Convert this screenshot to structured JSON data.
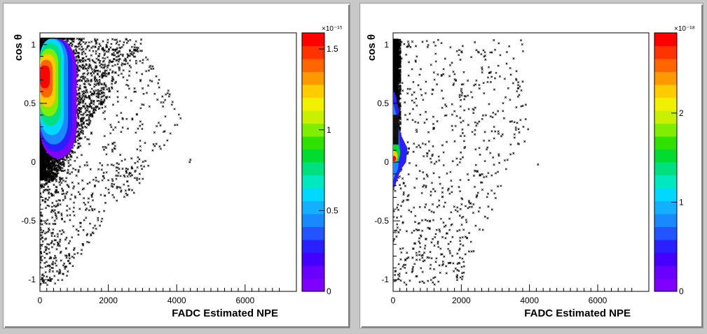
{
  "chart_data": [
    {
      "type": "scatter",
      "title": "",
      "xlabel": "FADC Estimated NPE",
      "ylabel": "cos θ",
      "xlim": [
        0,
        7500
      ],
      "ylim": [
        -1.1,
        1.1
      ],
      "x_ticks": [
        "0",
        "2000",
        "4000",
        "6000"
      ],
      "y_ticks": [
        "-1",
        "-0.5",
        "0",
        "0.5",
        "1"
      ],
      "colorbar": {
        "exponent": "×10⁻¹⁵",
        "range": [
          0,
          1.6
        ],
        "tick_labels": [
          "0",
          "0.5",
          "1",
          "1.5"
        ],
        "tick_values": [
          0,
          0.5,
          1,
          1.5
        ]
      },
      "overlay": "contour",
      "overlay_peak_cos": 0.75,
      "scatter_density": "dense"
    },
    {
      "type": "scatter",
      "title": "",
      "xlabel": "FADC Estimated NPE",
      "ylabel": "cos θ",
      "xlim": [
        0,
        7500
      ],
      "ylim": [
        -1.1,
        1.1
      ],
      "x_ticks": [
        "0",
        "2000",
        "4000",
        "6000"
      ],
      "y_ticks": [
        "-1",
        "-0.5",
        "0",
        "0.5",
        "1"
      ],
      "colorbar": {
        "exponent": "×10⁻¹⁸",
        "range": [
          0,
          2.9
        ],
        "tick_labels": [
          "0",
          "1",
          "2"
        ],
        "tick_values": [
          0,
          1,
          2
        ]
      },
      "overlay": "contour",
      "overlay_peak_cos": 0.05,
      "scatter_density": "sparse"
    }
  ],
  "palette": [
    "#8000ff",
    "#6a00ff",
    "#4400ff",
    "#2a20ff",
    "#2255ff",
    "#1a88ff",
    "#12b0ff",
    "#00d8ff",
    "#00e8c0",
    "#00e080",
    "#00dd30",
    "#30e000",
    "#80ee00",
    "#c8f000",
    "#f0f000",
    "#ffcc00",
    "#ff9900",
    "#ff6600",
    "#ff3300",
    "#ff0000"
  ]
}
